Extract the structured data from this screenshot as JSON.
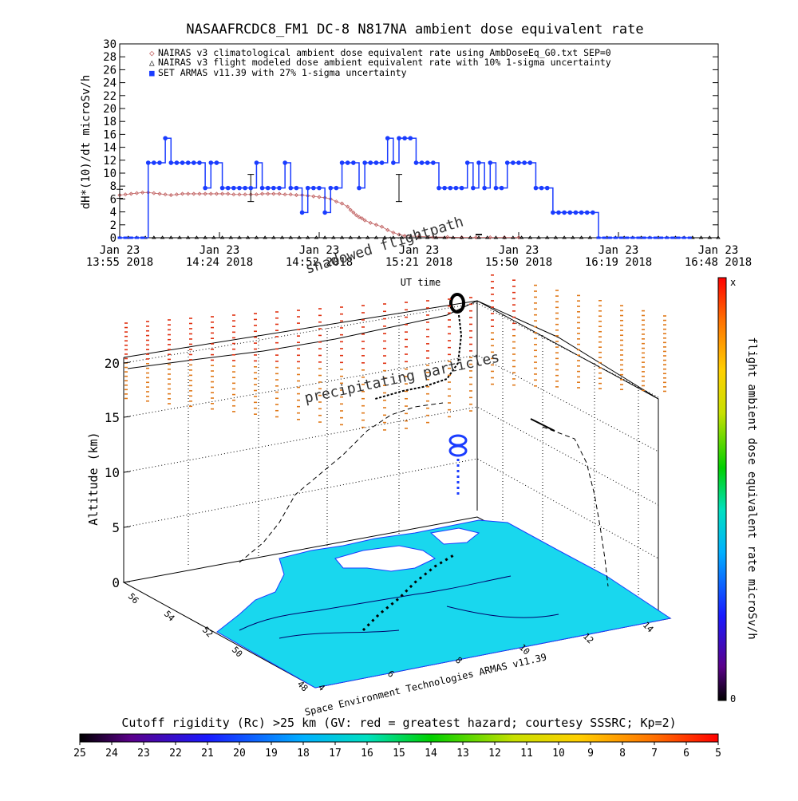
{
  "title": "NASAAFRCDC8_FM1 DC-8   N817NA ambient dose equivalent rate",
  "colors": {
    "nairas_clim": "#c06060",
    "nairas_flight": "#000000",
    "armas": "#1a3cff",
    "land": "#19d7ee",
    "water": "#ffffff",
    "particle_high": "#e03010",
    "particle_low": "#e07818"
  },
  "chart_data": [
    {
      "type": "line",
      "ylabel": "dH*(10)/dt microSv/h",
      "xlabel": "UT time",
      "ylim": [
        0,
        30
      ],
      "yticks": [
        0,
        2,
        4,
        6,
        8,
        10,
        12,
        14,
        16,
        18,
        20,
        22,
        24,
        26,
        28,
        30
      ],
      "xticks": [
        {
          "line1": "Jan 23",
          "line2": "13:55 2018"
        },
        {
          "line1": "Jan 23",
          "line2": "14:24 2018"
        },
        {
          "line1": "Jan 23",
          "line2": "14:52 2018"
        },
        {
          "line1": "Jan 23",
          "line2": "15:21 2018"
        },
        {
          "line1": "Jan 23",
          "line2": "15:50 2018"
        },
        {
          "line1": "Jan 23",
          "line2": "16:19 2018"
        },
        {
          "line1": "Jan 23",
          "line2": "16:48 2018"
        }
      ],
      "legend": [
        {
          "symbol": "◇",
          "label": "NAIRAS v3 climatological ambient dose equivalent rate using AmbDoseEq_G0.txt SEP=0"
        },
        {
          "symbol": "△",
          "label": "NAIRAS v3 flight modeled dose ambient equivalent rate with 10% 1-sigma uncertainty"
        },
        {
          "symbol": "■",
          "label": "SET ARMAS v11.39 with 27% 1-sigma uncertainty"
        }
      ],
      "legend_position": "top-left",
      "series": [
        {
          "name": "NAIRAS v3 climatological ambient dose equivalent rate using AmbDoseEq_G0.txt SEP=0",
          "x": [
            0,
            2,
            4,
            6,
            8,
            10,
            12,
            14,
            16,
            18,
            20,
            22,
            24,
            26,
            28,
            30,
            32,
            34,
            36,
            38,
            40,
            42,
            44,
            46,
            48,
            50,
            52,
            54,
            56,
            58,
            60,
            62,
            64,
            66,
            68,
            70,
            72,
            74,
            76,
            78,
            80,
            81,
            82,
            83,
            84,
            85,
            86,
            88,
            90,
            92,
            94,
            96,
            98,
            100,
            105,
            110,
            115,
            120,
            125,
            130,
            135,
            140
          ],
          "values": [
            6.6,
            6.7,
            6.8,
            6.9,
            7.0,
            7.0,
            6.9,
            6.8,
            6.7,
            6.6,
            6.7,
            6.8,
            6.8,
            6.8,
            6.8,
            6.8,
            6.8,
            6.8,
            6.8,
            6.8,
            6.7,
            6.7,
            6.7,
            6.7,
            6.7,
            6.8,
            6.8,
            6.8,
            6.8,
            6.7,
            6.7,
            6.6,
            6.6,
            6.5,
            6.4,
            6.3,
            6.2,
            6.0,
            5.6,
            5.3,
            4.8,
            4.3,
            3.9,
            3.5,
            3.2,
            3.0,
            2.7,
            2.3,
            2.0,
            1.7,
            1.2,
            0.8,
            0.5,
            0.3,
            0.2,
            0.1,
            0.1,
            0.05,
            0.05,
            0.05,
            0.05,
            0.05
          ]
        },
        {
          "name": "NAIRAS v3 flight modeled dose ambient equivalent rate with 10% 1-sigma uncertainty",
          "x": [
            0,
            3,
            6,
            9,
            12,
            15,
            18,
            21,
            24,
            27,
            30,
            33,
            36,
            39,
            42,
            45,
            48,
            51,
            54,
            57,
            60,
            63,
            66,
            69,
            72,
            75,
            78,
            81,
            84,
            87,
            90,
            93,
            96,
            99,
            102,
            105,
            108,
            111,
            114,
            117,
            120,
            123,
            126,
            129,
            132,
            135,
            138,
            141,
            144,
            147,
            150,
            153,
            156,
            159,
            162,
            165,
            168,
            171,
            174,
            177,
            180,
            183,
            186,
            189,
            192,
            195,
            198,
            201,
            204,
            207,
            210
          ],
          "values": [
            0,
            0,
            0,
            0,
            0,
            0,
            0,
            0,
            0,
            0,
            0,
            0,
            0,
            0,
            0,
            0,
            0,
            0,
            0,
            0,
            0,
            0,
            0,
            0,
            0,
            0,
            0,
            0,
            0,
            0,
            0,
            0,
            0,
            0,
            0,
            0,
            0,
            0,
            0,
            0,
            0,
            0,
            0,
            0,
            0,
            0,
            0,
            0,
            0,
            0,
            0,
            0,
            0,
            0,
            0,
            0,
            0,
            0,
            0,
            0,
            0,
            0,
            0,
            0,
            0,
            0,
            0,
            0,
            0,
            0,
            0
          ],
          "errorbars": [
            {
              "x": 0,
              "y": 6.8,
              "err": 0.7
            },
            {
              "x": 46,
              "y": 7.7,
              "err": 2.1
            },
            {
              "x": 98,
              "y": 7.7,
              "err": 2.1
            },
            {
              "x": 126,
              "y": 0.5,
              "err": 0.05
            }
          ]
        },
        {
          "name": "SET ARMAS v11.39 with 27% 1-sigma uncertainty",
          "x": [
            0,
            2,
            4,
            6,
            8,
            10,
            12,
            14,
            16,
            18,
            20,
            22,
            24,
            26,
            28,
            30,
            32,
            34,
            36,
            38,
            40,
            42,
            44,
            46,
            48,
            50,
            52,
            54,
            56,
            58,
            60,
            62,
            64,
            66,
            68,
            70,
            72,
            74,
            76,
            78,
            80,
            82,
            84,
            86,
            88,
            90,
            92,
            94,
            96,
            98,
            100,
            102,
            104,
            106,
            108,
            110,
            112,
            114,
            116,
            118,
            120,
            122,
            124,
            126,
            128,
            130,
            132,
            134,
            136,
            138,
            140,
            142,
            144,
            146,
            148,
            150,
            152,
            154,
            156,
            158,
            160,
            162,
            164,
            166,
            168,
            170,
            172,
            174,
            176,
            178,
            180,
            182,
            184,
            186,
            188,
            190,
            192,
            194,
            196,
            198,
            200
          ],
          "values": [
            0,
            0,
            0,
            0,
            0,
            11.6,
            11.6,
            11.6,
            15.4,
            11.6,
            11.6,
            11.6,
            11.6,
            11.6,
            11.6,
            7.7,
            11.6,
            11.6,
            7.7,
            7.7,
            7.7,
            7.7,
            7.7,
            7.7,
            11.6,
            7.7,
            7.7,
            7.7,
            7.7,
            11.6,
            7.7,
            7.7,
            3.9,
            7.7,
            7.7,
            7.7,
            3.9,
            7.7,
            7.7,
            11.6,
            11.6,
            11.6,
            7.7,
            11.6,
            11.6,
            11.6,
            11.6,
            15.4,
            11.6,
            15.4,
            15.4,
            15.4,
            11.6,
            11.6,
            11.6,
            11.6,
            7.7,
            7.7,
            7.7,
            7.7,
            7.7,
            11.6,
            7.7,
            11.6,
            7.7,
            11.6,
            7.7,
            7.7,
            11.6,
            11.6,
            11.6,
            11.6,
            11.6,
            7.7,
            7.7,
            7.7,
            3.9,
            3.9,
            3.9,
            3.9,
            3.9,
            3.9,
            3.9,
            3.9,
            0,
            0,
            0,
            0,
            0,
            0,
            0,
            0,
            0,
            0,
            0,
            0,
            0,
            0,
            0,
            0,
            0
          ]
        }
      ]
    },
    {
      "type": "scatter",
      "zlabel": "Altitude (km)",
      "zticks": [
        0,
        5,
        10,
        15,
        20
      ],
      "lat_ticks": [
        48,
        50,
        52,
        54,
        56
      ],
      "lon_ticks": [
        4,
        6,
        8,
        10,
        12,
        14
      ],
      "annotations": [
        "shadowed flightpath",
        "precipitating particles"
      ],
      "credit": "Space Environment Technologies ARMAS v11.39",
      "colorbar": {
        "label": "flight ambient dose equivalent rate microSv/h",
        "min_label": "0",
        "max_label": "x"
      }
    },
    {
      "type": "heatmap",
      "title": "Cutoff rigidity (Rc) >25 km (GV: red = greatest hazard; courtesy SSSRC; Kp=2)",
      "ticks": [
        25,
        24,
        23,
        22,
        21,
        20,
        19,
        18,
        17,
        16,
        15,
        14,
        13,
        12,
        11,
        10,
        9,
        8,
        7,
        6,
        5
      ]
    }
  ]
}
